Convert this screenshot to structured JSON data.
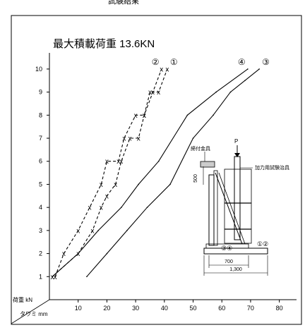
{
  "header": {
    "title_fragment": "試験結果"
  },
  "chart_data": {
    "type": "line",
    "title": "最大積載荷重 13.6KN",
    "ylabel": "荷重 kN",
    "xlabel": "タワミ mm",
    "xlim": [
      0,
      85
    ],
    "ylim": [
      0,
      10.7
    ],
    "xticks": [
      10,
      20,
      30,
      40,
      50,
      60,
      70,
      80
    ],
    "yticks": [
      1,
      2,
      3,
      4,
      5,
      6,
      7,
      8,
      9,
      10
    ],
    "grid": false,
    "series": [
      {
        "name": "①",
        "style": "dashed",
        "marker": "x",
        "x": [
          2,
          5,
          10,
          14,
          18,
          20,
          24,
          26,
          30,
          33,
          35,
          38,
          41
        ],
        "y": [
          1,
          2,
          3,
          4,
          5,
          6,
          6,
          7,
          8,
          8,
          9,
          9,
          10
        ]
      },
      {
        "name": "②",
        "style": "dashed",
        "marker": "x",
        "x": [
          1,
          10,
          15,
          18,
          20,
          23,
          25,
          28,
          31,
          33,
          36,
          39
        ],
        "y": [
          1,
          2,
          3,
          4,
          4.5,
          5,
          6,
          7,
          7,
          8,
          9,
          10
        ]
      },
      {
        "name": "③",
        "style": "solid",
        "marker": "none",
        "x": [
          13,
          20,
          27,
          34,
          42,
          50,
          57,
          63,
          68,
          73
        ],
        "y": [
          1,
          2,
          3,
          4,
          5,
          7,
          8,
          9,
          9.5,
          10
        ]
      },
      {
        "name": "④",
        "style": "solid",
        "marker": "none",
        "x": [
          1,
          10,
          17,
          25,
          31,
          38,
          48,
          58,
          69
        ],
        "y": [
          1,
          2,
          3,
          4,
          5,
          6,
          8,
          9,
          10
        ]
      }
    ],
    "inset": {
      "labels": {
        "fitting": "締付金具",
        "jig": "加力用試験治具",
        "load": "P",
        "dim_height": "500",
        "dim_700": "700",
        "dim_1300": "1,300",
        "marker_left": "③④",
        "marker_right": "①②"
      }
    }
  }
}
